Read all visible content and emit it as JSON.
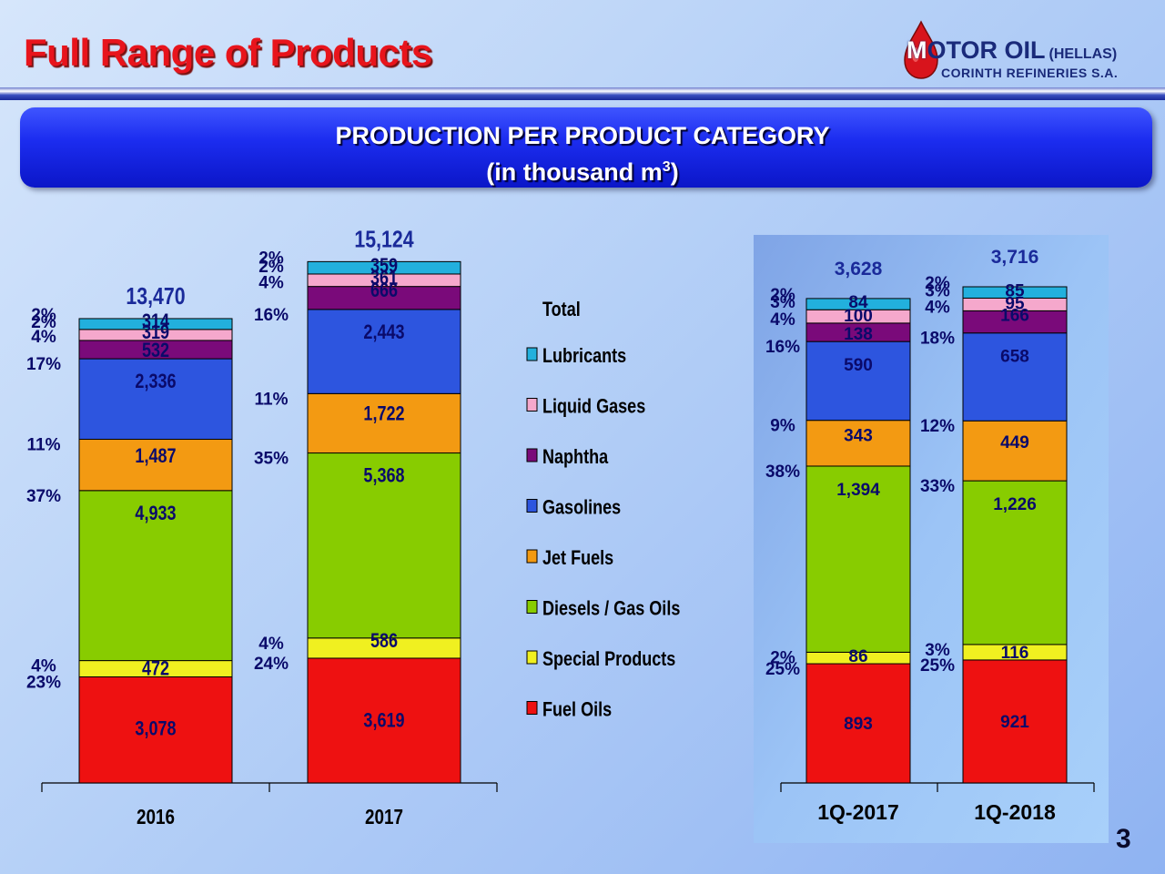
{
  "slide": {
    "title": "Full Range of Products",
    "page_number": "3"
  },
  "logo": {
    "brand_initial": "M",
    "brand_rest": "OTOR OIL",
    "brand_suffix": "(HELLAS)",
    "subline": "CORINTH REFINERIES S.A."
  },
  "banner": {
    "title": "PRODUCTION PER PRODUCT CATEGORY",
    "subtitle_prefix": "(in thousand m",
    "subtitle_sup": "3",
    "subtitle_suffix": ")"
  },
  "colors": {
    "title": "#e8141c",
    "banner": "#1c2df0",
    "text_navy": "#0a0a6a"
  },
  "chart_data": [
    {
      "type": "bar",
      "stacked": true,
      "categories": [
        "2016",
        "2017"
      ],
      "totals": [
        13470,
        15124
      ],
      "total_labels": [
        "13,470",
        "15,124"
      ],
      "legend_placement": "right",
      "series": [
        {
          "name": "Fuel Oils",
          "color": "#ee1111",
          "values": [
            3078,
            3619
          ],
          "labels": [
            "3,078",
            "3,619"
          ],
          "pct": [
            "23%",
            "24%"
          ]
        },
        {
          "name": "Special Products",
          "color": "#f0f020",
          "values": [
            472,
            586
          ],
          "labels": [
            "472",
            "586"
          ],
          "pct": [
            "4%",
            "4%"
          ]
        },
        {
          "name": "Diesels / Gas Oils",
          "color": "#88cc00",
          "values": [
            4933,
            5368
          ],
          "labels": [
            "4,933",
            "5,368"
          ],
          "pct": [
            "37%",
            "35%"
          ]
        },
        {
          "name": "Jet Fuels",
          "color": "#f39a12",
          "values": [
            1487,
            1722
          ],
          "labels": [
            "1,487",
            "1,722"
          ],
          "pct": [
            "11%",
            "11%"
          ]
        },
        {
          "name": "Gasolines",
          "color": "#2d55df",
          "values": [
            2336,
            2443
          ],
          "labels": [
            "2,336",
            "2,443"
          ],
          "pct": [
            "17%",
            "16%"
          ]
        },
        {
          "name": "Naphtha",
          "color": "#7a0a7a",
          "values": [
            532,
            666
          ],
          "labels": [
            "532",
            "666"
          ],
          "pct": [
            "4%",
            "4%"
          ]
        },
        {
          "name": "Liquid Gases",
          "color": "#f5a8cc",
          "values": [
            319,
            361
          ],
          "labels": [
            "319",
            "361"
          ],
          "pct": [
            "2%",
            "2%"
          ]
        },
        {
          "name": "Lubricants",
          "color": "#22b0dd",
          "values": [
            314,
            359
          ],
          "labels": [
            "314",
            "359"
          ],
          "pct": [
            "2%",
            "2%"
          ]
        }
      ]
    },
    {
      "type": "bar",
      "stacked": true,
      "categories": [
        "1Q-2017",
        "1Q-2018"
      ],
      "totals": [
        3628,
        3716
      ],
      "total_labels": [
        "3,628",
        "3,716"
      ],
      "series": [
        {
          "name": "Fuel Oils",
          "values": [
            893,
            921
          ],
          "labels": [
            "893",
            "921"
          ],
          "pct": [
            "25%",
            "25%"
          ]
        },
        {
          "name": "Special Products",
          "values": [
            86,
            116
          ],
          "labels": [
            "86",
            "116"
          ],
          "pct": [
            "2%",
            "3%"
          ]
        },
        {
          "name": "Diesels / Gas Oils",
          "values": [
            1394,
            1226
          ],
          "labels": [
            "1,394",
            "1,226"
          ],
          "pct": [
            "38%",
            "33%"
          ]
        },
        {
          "name": "Jet Fuels",
          "values": [
            343,
            449
          ],
          "labels": [
            "343",
            "449"
          ],
          "pct": [
            "9%",
            "12%"
          ]
        },
        {
          "name": "Gasolines",
          "values": [
            590,
            658
          ],
          "labels": [
            "590",
            "658"
          ],
          "pct": [
            "16%",
            "18%"
          ]
        },
        {
          "name": "Naphtha",
          "values": [
            138,
            166
          ],
          "labels": [
            "138",
            "166"
          ],
          "pct": [
            "4%",
            "4%"
          ]
        },
        {
          "name": "Liquid Gases",
          "values": [
            100,
            95
          ],
          "labels": [
            "100",
            "95"
          ],
          "pct": [
            "3%",
            "3%"
          ]
        },
        {
          "name": "Lubricants",
          "values": [
            84,
            85
          ],
          "labels": [
            "84",
            "85"
          ],
          "pct": [
            "2%",
            "2%"
          ]
        }
      ]
    }
  ],
  "legend_title": "Total"
}
